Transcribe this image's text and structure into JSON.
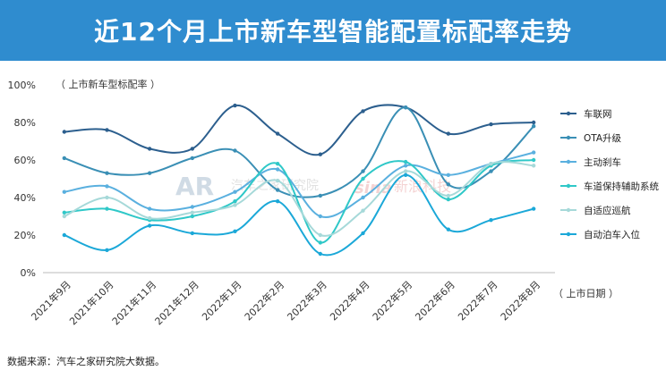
{
  "header": {
    "title": "近12个月上市新车型智能配置标配率走势"
  },
  "source_note": "数据来源：汽车之家研究院大数据。",
  "watermark": {
    "left_text": "汽车之家研究院",
    "right_text": "新浪科技",
    "left_logo": "AR",
    "right_logo": "sina"
  },
  "colors": {
    "banner": "#2f8ccf",
    "axis": "#bbbbbb",
    "text": "#333333"
  },
  "chart_data": {
    "type": "line",
    "ylabel": "（ 上市新车型标配率 ）",
    "xlabel": "（ 上市日期 ）",
    "ylim": [
      0,
      100
    ],
    "yticks": [
      "0%",
      "20%",
      "40%",
      "60%",
      "80%",
      "100%"
    ],
    "grid": false,
    "legend_position": "right",
    "categories": [
      "2021年9月",
      "2021年10月",
      "2021年11月",
      "2021年12月",
      "2022年1月",
      "2022年2月",
      "2022年3月",
      "2022年4月",
      "2022年5月",
      "2022年6月",
      "2022年7月",
      "2022年8月"
    ],
    "series": [
      {
        "name": "车联网",
        "color": "#2c5f8e",
        "marker": true,
        "values": [
          75,
          76,
          66,
          66,
          89,
          74,
          63,
          86,
          88,
          74,
          79,
          80
        ]
      },
      {
        "name": "OTA升级",
        "color": "#3a8fb5",
        "marker": true,
        "values": [
          61,
          53,
          53,
          61,
          65,
          44,
          41,
          54,
          88,
          47,
          54,
          78
        ]
      },
      {
        "name": "主动刹车",
        "color": "#5ab0df",
        "marker": true,
        "values": [
          43,
          46,
          34,
          35,
          43,
          55,
          30,
          40,
          57,
          52,
          58,
          64
        ]
      },
      {
        "name": "车道保持辅助系统",
        "color": "#2fc8c8",
        "marker": true,
        "values": [
          32,
          34,
          28,
          30,
          38,
          58,
          16,
          50,
          59,
          39,
          57,
          60
        ]
      },
      {
        "name": "自适应巡航",
        "color": "#a6d9d9",
        "marker": true,
        "values": [
          30,
          40,
          29,
          32,
          36,
          49,
          20,
          33,
          54,
          41,
          58,
          57
        ]
      },
      {
        "name": "自动泊车入位",
        "color": "#1ba8d8",
        "marker": true,
        "values": [
          20,
          12,
          25,
          21,
          22,
          38,
          10,
          21,
          52,
          23,
          28,
          34
        ]
      }
    ]
  }
}
